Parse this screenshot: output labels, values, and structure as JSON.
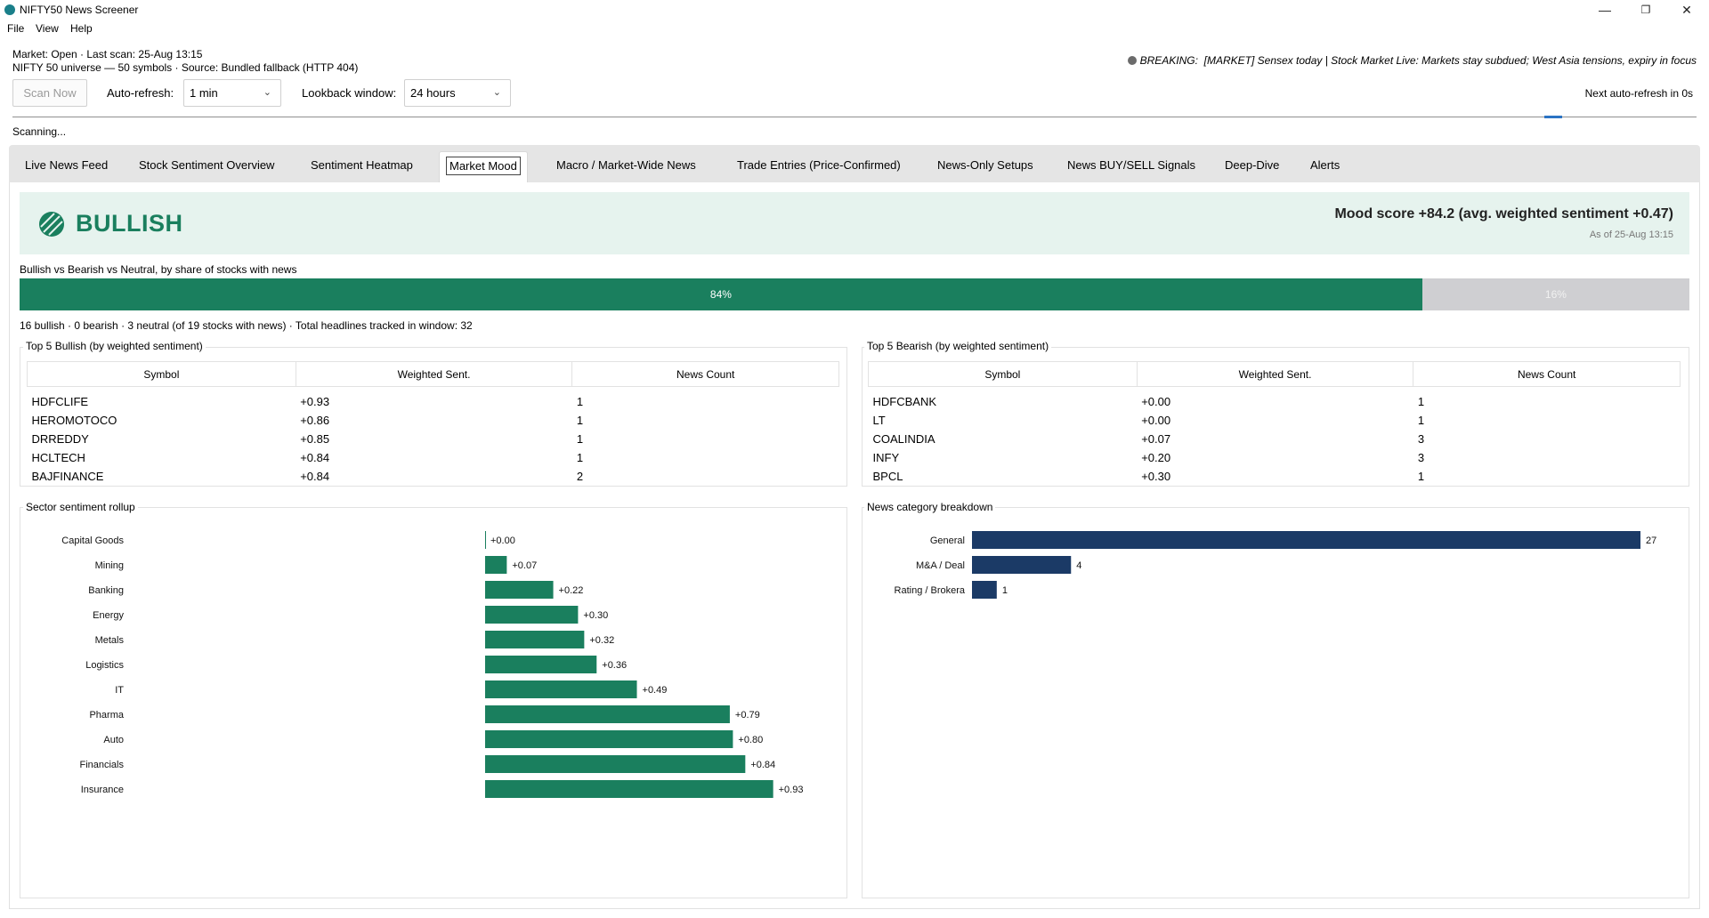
{
  "window": {
    "title": "NIFTY50 News Screener",
    "minimize": "—",
    "maximize": "❐",
    "close": "✕"
  },
  "menu": [
    "File",
    "View",
    "Help"
  ],
  "header": {
    "market_line": "Market: Open · Last scan: 25-Aug 13:15",
    "universe_line": "NIFTY 50 universe — 50 symbols · Source: Bundled fallback (HTTP 404)",
    "breaking_prefix": "BREAKING:",
    "breaking_text": "[MARKET] Sensex today | Stock Market Live: Markets stay subdued; West Asia tensions, expiry in focus"
  },
  "controls": {
    "scan_now": "Scan Now",
    "auto_refresh_label": "Auto-refresh:",
    "auto_refresh_value": "1 min",
    "lookback_label": "Lookback window:",
    "lookback_value": "24 hours",
    "next_refresh": "Next auto-refresh in 0s",
    "status": "Scanning..."
  },
  "tabs": [
    "Live News Feed",
    "Stock Sentiment Overview",
    "Sentiment Heatmap",
    "Market Mood",
    "Macro / Market-Wide News",
    "Trade Entries (Price-Confirmed)",
    "News-Only Setups",
    "News BUY/SELL Signals",
    "Deep-Dive",
    "Alerts"
  ],
  "active_tab": "Market Mood",
  "mood": {
    "label": "BULLISH",
    "score_text": "Mood score +84.2  (avg. weighted sentiment +0.47)",
    "as_of": "As of 25-Aug 13:15",
    "color": "#1a7f5e",
    "banner_color": "#e6f3ee"
  },
  "share": {
    "caption": "Bullish vs Bearish vs Neutral, by share of stocks with news",
    "bullish_pct": 84,
    "bullish_label": "84%",
    "neutral_pct": 16,
    "neutral_label": "16%",
    "summary": "16 bullish · 0 bearish · 3 neutral  (of 19 stocks with news)   ·   Total headlines tracked in window: 32"
  },
  "top_bullish": {
    "title": "Top 5 Bullish (by weighted sentiment)",
    "columns": [
      "Symbol",
      "Weighted Sent.",
      "News Count"
    ],
    "rows": [
      [
        "HDFCLIFE",
        "+0.93",
        "1"
      ],
      [
        "HEROMOTOCO",
        "+0.86",
        "1"
      ],
      [
        "DRREDDY",
        "+0.85",
        "1"
      ],
      [
        "HCLTECH",
        "+0.84",
        "1"
      ],
      [
        "BAJFINANCE",
        "+0.84",
        "2"
      ]
    ]
  },
  "top_bearish": {
    "title": "Top 5 Bearish (by weighted sentiment)",
    "columns": [
      "Symbol",
      "Weighted Sent.",
      "News Count"
    ],
    "rows": [
      [
        "HDFCBANK",
        "+0.00",
        "1"
      ],
      [
        "LT",
        "+0.00",
        "1"
      ],
      [
        "COALINDIA",
        "+0.07",
        "3"
      ],
      [
        "INFY",
        "+0.20",
        "3"
      ],
      [
        "BPCL",
        "+0.30",
        "1"
      ]
    ]
  },
  "chart_data": [
    {
      "type": "bar",
      "orientation": "horizontal",
      "title": "Sector sentiment rollup",
      "categories": [
        "Capital Goods",
        "Mining",
        "Banking",
        "Energy",
        "Metals",
        "Logistics",
        "IT",
        "Pharma",
        "Auto",
        "Financials",
        "Insurance"
      ],
      "values": [
        0.0,
        0.07,
        0.22,
        0.3,
        0.32,
        0.36,
        0.49,
        0.79,
        0.8,
        0.84,
        0.93
      ],
      "value_labels": [
        "+0.00",
        "+0.07",
        "+0.22",
        "+0.30",
        "+0.32",
        "+0.36",
        "+0.49",
        "+0.79",
        "+0.80",
        "+0.84",
        "+0.93"
      ],
      "xlim": [
        -1,
        1
      ],
      "color": "#1a7f5e",
      "grid": false
    },
    {
      "type": "bar",
      "orientation": "horizontal",
      "title": "News category breakdown",
      "categories": [
        "General",
        "M&A / Deal",
        "Rating / Brokera"
      ],
      "values": [
        27,
        4,
        1
      ],
      "value_labels": [
        "27",
        "4",
        "1"
      ],
      "xlim": [
        0,
        27
      ],
      "color": "#1b3a66",
      "grid": false
    }
  ]
}
